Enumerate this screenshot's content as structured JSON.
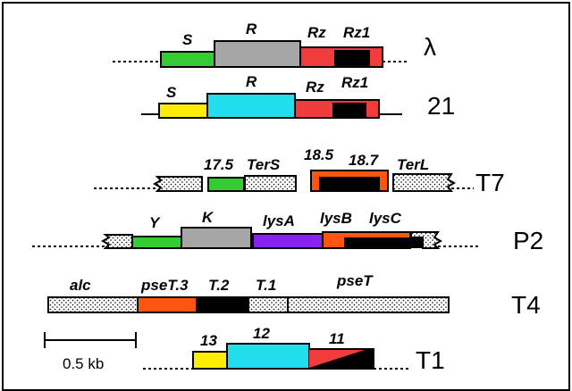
{
  "phages": [
    {
      "name": "λ",
      "genes": [
        {
          "label": "S",
          "color": "#33cc33"
        },
        {
          "label": "R",
          "color": "#a6a6a6"
        },
        {
          "label": "Rz",
          "color": "#f03c3c"
        },
        {
          "label": "Rz1",
          "color": "#000000"
        }
      ]
    },
    {
      "name": "21",
      "genes": [
        {
          "label": "S",
          "color": "#ffee00"
        },
        {
          "label": "R",
          "color": "#22ddee"
        },
        {
          "label": "Rz",
          "color": "#f03c3c"
        },
        {
          "label": "Rz1",
          "color": "#000000"
        }
      ]
    },
    {
      "name": "T7",
      "genes": [
        {
          "label": "17.5",
          "color": "#33cc33"
        },
        {
          "label": "TerS",
          "color": "dotted"
        },
        {
          "label": "18.5",
          "color": "#ff5511"
        },
        {
          "label": "18.7",
          "color": "#000000"
        },
        {
          "label": "TerL",
          "color": "dotted"
        }
      ]
    },
    {
      "name": "P2",
      "genes": [
        {
          "label": "Y",
          "color": "#33cc33"
        },
        {
          "label": "K",
          "color": "#a6a6a6"
        },
        {
          "label": "lysA",
          "color": "#8822ee"
        },
        {
          "label": "lysB",
          "color": "#ff5511"
        },
        {
          "label": "lysC",
          "color": "#000000"
        }
      ]
    },
    {
      "name": "T4",
      "genes": [
        {
          "label": "alc",
          "color": "dotted"
        },
        {
          "label": "pseT.3",
          "color": "#ff5511"
        },
        {
          "label": "T.2",
          "color": "#000000"
        },
        {
          "label": "T.1",
          "color": "dotted"
        },
        {
          "label": "pseT",
          "color": "dotted"
        }
      ]
    },
    {
      "name": "T1",
      "genes": [
        {
          "label": "13",
          "color": "#ffee00"
        },
        {
          "label": "12",
          "color": "#22ddee"
        },
        {
          "label": "11",
          "color": "#f03c3c"
        }
      ]
    }
  ],
  "scale_bar": {
    "label": "0.5 kb"
  }
}
